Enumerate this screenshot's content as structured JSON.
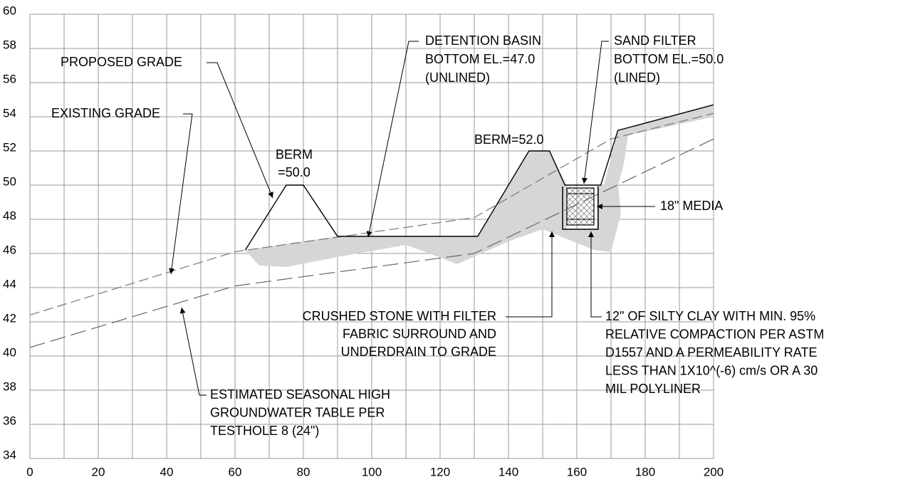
{
  "chart_data": {
    "type": "line",
    "xlim": [
      0,
      200
    ],
    "ylim": [
      34,
      60
    ],
    "xticks": [
      0,
      20,
      40,
      60,
      80,
      100,
      120,
      140,
      160,
      180,
      200
    ],
    "xminor": [
      10,
      30,
      50,
      70,
      90,
      110,
      130,
      150,
      170,
      190
    ],
    "yticks": [
      34,
      36,
      38,
      40,
      42,
      44,
      46,
      48,
      50,
      52,
      54,
      56,
      58,
      60
    ],
    "grid": true,
    "series": [
      {
        "color": "#777",
        "dash": "14 6",
        "x": [
          0,
          60,
          130,
          170,
          200
        ],
        "values": [
          42.4,
          46.1,
          48.1,
          52.7,
          54.2
        ]
      },
      {
        "color": "#666",
        "dash": "22 8",
        "x": [
          0,
          60,
          130,
          200
        ],
        "values": [
          40.5,
          44.1,
          46.0,
          52.7
        ]
      },
      {
        "color": "#000",
        "dash": "",
        "x": [
          63,
          75,
          80,
          90,
          131,
          146,
          152,
          156.5,
          167,
          172,
          200
        ],
        "values": [
          46.2,
          50,
          50,
          47,
          47,
          52,
          52,
          50,
          50,
          53.2,
          54.7
        ]
      }
    ],
    "annotations": [
      {
        "lines": [
          "PROPOSED GRADE"
        ]
      },
      {
        "lines": [
          "EXISTING GRADE"
        ]
      },
      {
        "lines": [
          "BERM",
          "=50.0"
        ]
      },
      {
        "lines": [
          "DETENTION BASIN",
          "BOTTOM EL.=47.0",
          "(UNLINED)"
        ]
      },
      {
        "lines": [
          "BERM=52.0"
        ]
      },
      {
        "lines": [
          "SAND FILTER",
          "BOTTOM EL.=50.0",
          "(LINED)"
        ]
      },
      {
        "lines": [
          "18\" MEDIA"
        ]
      },
      {
        "lines": [
          "CRUSHED STONE WITH FILTER",
          "FABRIC SURROUND AND",
          "UNDERDRAIN TO GRADE"
        ]
      },
      {
        "lines": [
          "12\" OF SILTY CLAY WITH MIN. 95%",
          "RELATIVE COMPACTION PER ASTM",
          "D1557 AND A PERMEABILITY RATE",
          "LESS THAN 1X10^(-6) cm/s OR A 30",
          "MIL POLYLINER"
        ]
      },
      {
        "lines": [
          "ESTIMATED SEASONAL HIGH",
          "GROUNDWATER TABLE PER",
          "TESTHOLE 8 (24\")"
        ]
      }
    ]
  }
}
